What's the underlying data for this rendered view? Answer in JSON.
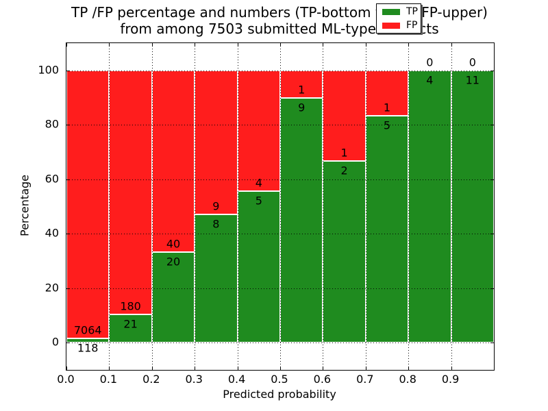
{
  "title": {
    "line1": "TP /FP percentage and numbers (TP-bottom value, FP-upper)",
    "line2": "from among 7503 submitted ML-type contacts"
  },
  "chart_data": {
    "type": "bar",
    "stacked": true,
    "normalized": "each bin scaled to 100%",
    "title": "TP /FP percentage and numbers (TP-bottom value, FP-upper)\nfrom among 7503 submitted ML-type contacts",
    "xlabel": "Predicted probability",
    "ylabel": "Percentage",
    "xlim": [
      0.0,
      1.0
    ],
    "ylim": [
      -10,
      110
    ],
    "xtick_labels": [
      "0.0",
      "0.1",
      "0.2",
      "0.3",
      "0.4",
      "0.5",
      "0.6",
      "0.7",
      "0.8",
      "0.9"
    ],
    "ytick_values": [
      0,
      20,
      40,
      60,
      80,
      100
    ],
    "grid": "dotted",
    "colors": {
      "tp": "#1f8b1f",
      "fp": "#ff1d1d"
    },
    "legend": {
      "position": "upper right",
      "entries": [
        {
          "label": "TP",
          "color": "#1f8b1f"
        },
        {
          "label": "FP",
          "color": "#ff1d1d"
        }
      ]
    },
    "bins": [
      {
        "range": [
          0.0,
          0.1
        ],
        "tp": 118,
        "fp": 7064
      },
      {
        "range": [
          0.1,
          0.2
        ],
        "tp": 21,
        "fp": 180
      },
      {
        "range": [
          0.2,
          0.3
        ],
        "tp": 20,
        "fp": 40
      },
      {
        "range": [
          0.3,
          0.4
        ],
        "tp": 8,
        "fp": 9
      },
      {
        "range": [
          0.4,
          0.5
        ],
        "tp": 5,
        "fp": 4
      },
      {
        "range": [
          0.5,
          0.6
        ],
        "tp": 9,
        "fp": 1
      },
      {
        "range": [
          0.6,
          0.7
        ],
        "tp": 2,
        "fp": 1
      },
      {
        "range": [
          0.7,
          0.8
        ],
        "tp": 5,
        "fp": 1
      },
      {
        "range": [
          0.8,
          0.9
        ],
        "tp": 4,
        "fp": 0
      },
      {
        "range": [
          0.9,
          1.0
        ],
        "tp": 11,
        "fp": 0
      }
    ]
  }
}
